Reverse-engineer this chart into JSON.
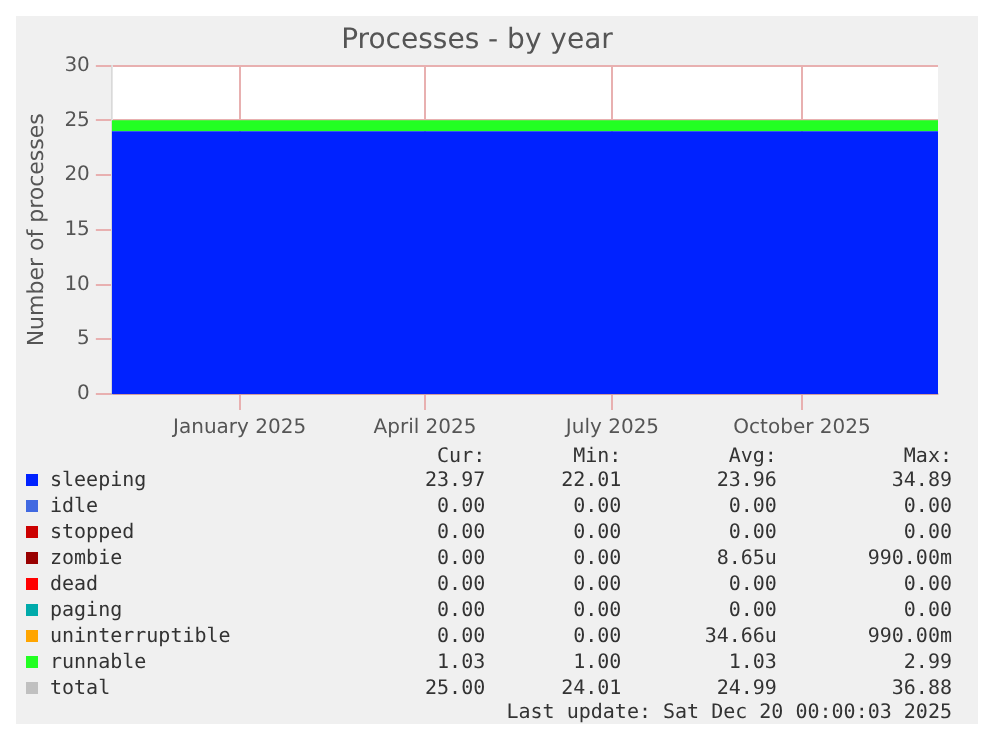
{
  "chart_data": {
    "type": "area",
    "title": "Processes - by year",
    "ylabel": "Number of processes",
    "stacked": true,
    "x": [
      "2024-10-31",
      "2025-12-06"
    ],
    "xlim": [
      "2024-10-31",
      "2025-12-06"
    ],
    "xticks": [
      {
        "value": "2025-01-01",
        "label": "January 2025"
      },
      {
        "value": "2025-04-01",
        "label": "April 2025"
      },
      {
        "value": "2025-07-01",
        "label": "July 2025"
      },
      {
        "value": "2025-10-01",
        "label": "October 2025"
      }
    ],
    "ylim": [
      0,
      30
    ],
    "yticks": [
      0,
      5,
      10,
      15,
      20,
      25,
      30
    ],
    "grid": true,
    "legend": "bottom",
    "series": [
      {
        "name": "sleeping",
        "color": "#0022ff",
        "values": [
          24,
          24
        ]
      },
      {
        "name": "idle",
        "color": "#4169e1",
        "values": [
          null,
          null
        ]
      },
      {
        "name": "stopped",
        "color": "#cc0000",
        "values": [
          null,
          null
        ]
      },
      {
        "name": "zombie",
        "color": "#990000",
        "values": [
          null,
          null
        ]
      },
      {
        "name": "dead",
        "color": "#ff0000",
        "values": [
          null,
          null
        ]
      },
      {
        "name": "paging",
        "color": "#00aaaa",
        "values": [
          null,
          null
        ]
      },
      {
        "name": "uninterruptible",
        "color": "#ffa500",
        "values": [
          null,
          null
        ]
      },
      {
        "name": "runnable",
        "color": "#22ff22",
        "values": [
          1,
          1
        ]
      },
      {
        "name": "total",
        "color": "#c0c0c0",
        "type": "line",
        "values": [
          null,
          null
        ]
      }
    ],
    "annotations": [
      "Cur:",
      "Min:",
      "Avg:",
      "Max:",
      "23.97",
      "22.01",
      "23.96",
      "34.89",
      "0.00",
      "0.00",
      "0.00",
      "0.00",
      "0.00",
      "0.00",
      "0.00",
      "0.00",
      "0.00",
      "0.00",
      "8.65u",
      "990.00m",
      "0.00",
      "0.00",
      "0.00",
      "0.00",
      "0.00",
      "0.00",
      "0.00",
      "0.00",
      "0.00",
      "0.00",
      "34.66u",
      "990.00m",
      "1.03",
      "1.00",
      "1.03",
      "2.99",
      "25.00",
      "24.01",
      "24.99",
      "36.88",
      "Last update: Sat Dec 20 00:00:03 2025"
    ]
  }
}
